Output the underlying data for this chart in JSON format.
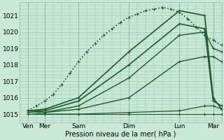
{
  "xlabel": "Pression niveau de la mer( hPa )",
  "bg_color": "#c8e8d8",
  "grid_color": "#99bbaa",
  "line_color": "#1a5c2a",
  "xlim": [
    0,
    144
  ],
  "ylim": [
    1014.5,
    1021.8
  ],
  "yticks": [
    1015,
    1016,
    1017,
    1018,
    1019,
    1020,
    1021
  ],
  "xtick_labels": [
    "Ven",
    "Mer",
    "Sam",
    "Dim",
    "Lun",
    "Mar"
  ],
  "xtick_positions": [
    6,
    18,
    42,
    78,
    114,
    138
  ],
  "day_vlines": [
    6,
    18,
    42,
    78,
    114,
    138
  ],
  "series": [
    {
      "x": [
        6,
        12,
        18,
        24,
        30,
        36,
        42,
        48,
        54,
        60,
        66,
        72,
        78,
        84,
        90,
        96,
        102,
        108,
        114,
        120,
        126,
        132,
        138,
        144
      ],
      "y": [
        1015.2,
        1015.5,
        1015.8,
        1016.2,
        1016.8,
        1017.5,
        1018.2,
        1018.8,
        1019.3,
        1019.8,
        1020.2,
        1020.6,
        1020.9,
        1021.1,
        1021.3,
        1021.4,
        1021.5,
        1021.4,
        1021.2,
        1020.8,
        1020.3,
        1019.8,
        1019.5,
        1019.2
      ],
      "lw": 1.2,
      "ms": 3.5,
      "dotted": true
    },
    {
      "x": [
        6,
        18,
        42,
        78,
        114,
        132,
        138,
        144
      ],
      "y": [
        1015.2,
        1015.3,
        1016.0,
        1018.8,
        1021.3,
        1021.0,
        1016.0,
        1015.3
      ],
      "lw": 1.2,
      "ms": 3.5,
      "dotted": false
    },
    {
      "x": [
        6,
        18,
        42,
        78,
        114,
        132,
        138,
        144
      ],
      "y": [
        1015.2,
        1015.2,
        1015.8,
        1018.0,
        1020.5,
        1020.2,
        1015.8,
        1015.5
      ],
      "lw": 1.2,
      "ms": 3.5,
      "dotted": false
    },
    {
      "x": [
        6,
        18,
        42,
        78,
        114,
        132,
        138,
        144
      ],
      "y": [
        1015.2,
        1015.1,
        1015.5,
        1017.2,
        1019.8,
        1020.0,
        1019.0,
        1018.8
      ],
      "lw": 1.0,
      "ms": 3.0,
      "dotted": false
    },
    {
      "x": [
        6,
        18,
        42,
        78,
        114,
        132,
        138,
        144
      ],
      "y": [
        1015.2,
        1015.1,
        1015.3,
        1016.0,
        1018.2,
        1018.5,
        1018.5,
        1018.2
      ],
      "lw": 1.0,
      "ms": 3.0,
      "dotted": false
    },
    {
      "x": [
        6,
        18,
        42,
        78,
        114,
        132,
        138,
        144
      ],
      "y": [
        1015.1,
        1015.0,
        1015.0,
        1015.1,
        1015.2,
        1015.5,
        1015.5,
        1015.3
      ],
      "lw": 0.9,
      "ms": 3.0,
      "dotted": false
    },
    {
      "x": [
        6,
        18,
        42,
        78,
        114,
        132,
        138,
        144
      ],
      "y": [
        1015.0,
        1015.0,
        1015.0,
        1015.0,
        1015.0,
        1015.0,
        1015.0,
        1015.0
      ],
      "lw": 0.8,
      "ms": 2.5,
      "dotted": false
    }
  ]
}
